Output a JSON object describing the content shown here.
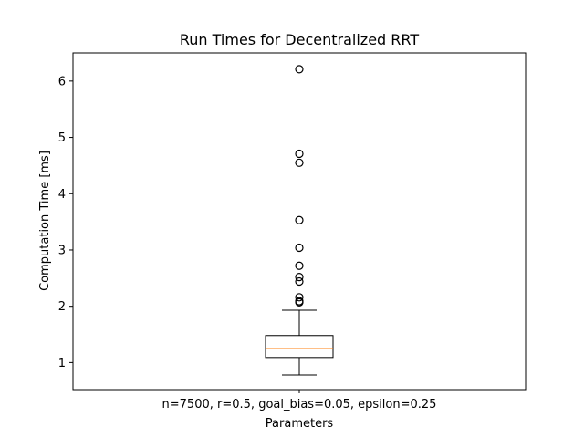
{
  "chart_data": {
    "type": "box",
    "title": "Run Times for Decentralized RRT",
    "xlabel": "Parameters",
    "ylabel": "Computation Time [ms]",
    "categories": [
      "n=7500, r=0.5, goal_bias=0.05, epsilon=0.25"
    ],
    "ylim": [
      0.52,
      6.5
    ],
    "yticks": [
      1,
      2,
      3,
      4,
      5,
      6
    ],
    "grid": false,
    "series": [
      {
        "whisker_low": 0.78,
        "q1": 1.09,
        "median": 1.25,
        "q3": 1.48,
        "whisker_high": 1.93,
        "outliers": [
          2.07,
          2.09,
          2.16,
          2.44,
          2.52,
          2.72,
          3.04,
          3.53,
          4.55,
          4.71,
          6.21
        ]
      }
    ],
    "colors": {
      "box": "#000000",
      "median": "#ff7f0e",
      "outlier": "#000000"
    }
  }
}
